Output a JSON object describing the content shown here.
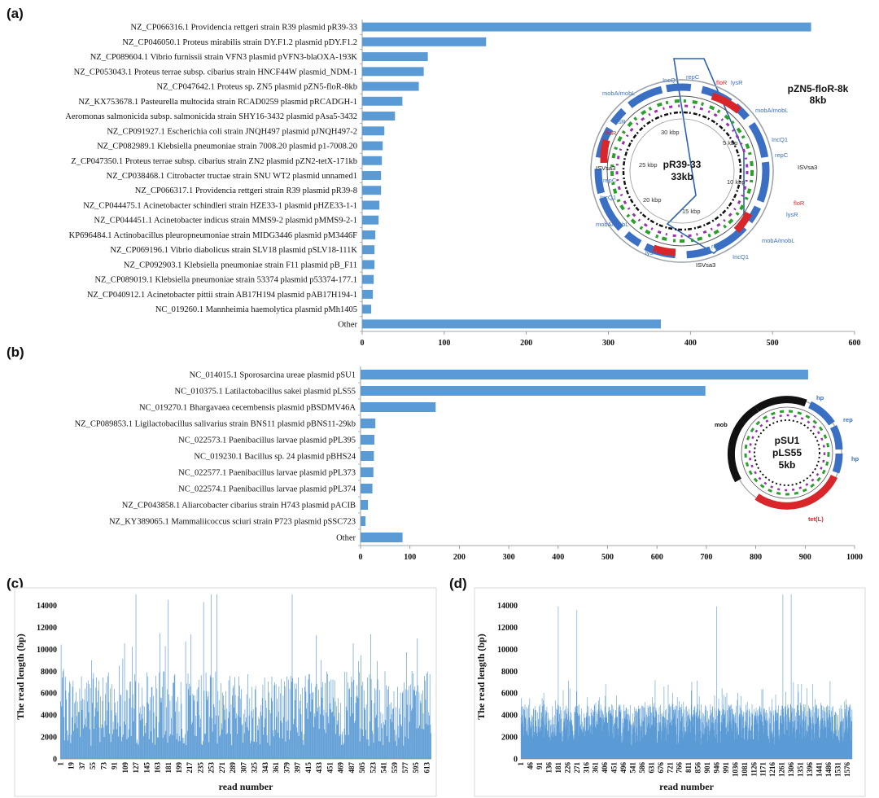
{
  "colors": {
    "bar": "#5b9bd5",
    "grid": "#d9d9d9",
    "axis": "#888888",
    "blue_gene": "#3a6fc4",
    "red_gene": "#d8262b"
  },
  "panel_labels": [
    "(a)",
    "(b)",
    "(c)",
    "(d)"
  ],
  "chart_data": [
    {
      "type": "bar",
      "orientation": "horizontal",
      "panel": "(a)",
      "categories": [
        "NZ_CP066316.1 Providencia rettgeri strain R39 plasmid pR39-33",
        "NZ_CP046050.1 Proteus mirabilis strain DY.F1.2 plasmid pDY.F1.2",
        "NZ_CP089604.1 Vibrio furnissii strain VFN3 plasmid pVFN3-blaOXA-193K",
        "NZ_CP053043.1 Proteus terrae subsp. cibarius strain HNCF44W plasmid_NDM-1",
        "NZ_CP047642.1 Proteus sp. ZN5 plasmid pZN5-floR-8kb",
        "NZ_KX753678.1 Pasteurella multocida strain RCAD0259 plasmid pRCADGH-1",
        "Aeromonas salmonicida subsp. salmonicida strain SHY16-3432 plasmid pAsa5-3432",
        "NZ_CP091927.1 Escherichia coli strain JNQH497 plasmid pJNQH497-2",
        "NZ_CP082989.1 Klebsiella pneumoniae strain 7008.20 plasmid p1-7008.20",
        "Z_CP047350.1 Proteus terrae subsp. cibarius strain ZN2 plasmid pZN2-tetX-171kb",
        "NZ_CP038468.1 Citrobacter tructae strain SNU WT2 plasmid unnamed1",
        "NZ_CP066317.1 Providencia rettgeri strain R39 plasmid pR39-8",
        "NZ_CP044475.1 Acinetobacter schindleri strain HZE33-1 plasmid pHZE33-1-1",
        "NZ_CP044451.1 Acinetobacter indicus strain MMS9-2 plasmid pMMS9-2-1",
        "KP696484.1 Actinobacillus pleuropneumoniae strain MIDG3446 plasmid pM3446F",
        "NZ_CP069196.1 Vibrio diabolicus strain SLV18 plasmid pSLV18-111K",
        "NZ_CP092903.1 Klebsiella pneumoniae strain F11 plasmid pB_F11",
        "NZ_CP089019.1 Klebsiella pneumoniae strain 53374 plasmid p53374-177.1",
        "NZ_CP040912.1 Acinetobacter pittii strain AB17H194 plasmid pAB17H194-1",
        "NC_019260.1 Mannheimia haemolytica plasmid pMh1405",
        "Other"
      ],
      "values": [
        547,
        151,
        80,
        75,
        69,
        49,
        40,
        27,
        25,
        24,
        23,
        23,
        21,
        20,
        16,
        15,
        15,
        14,
        13,
        11,
        364
      ],
      "xlim": [
        0,
        600
      ],
      "xticks": [
        "0",
        "100",
        "200",
        "300",
        "400",
        "500",
        "600"
      ]
    },
    {
      "type": "bar",
      "orientation": "horizontal",
      "panel": "(b)",
      "categories": [
        "NC_014015.1 Sporosarcina ureae plasmid pSU1",
        "NC_010375.1 Latilactobacillus sakei plasmid pLS55",
        "NC_019270.1 Bhargavaea cecembensis plasmid pBSDMV46A",
        "NZ_CP089853.1 Ligilactobacillus salivarius strain BNS11 plasmid pBNS11-29kb",
        "NC_022573.1 Paenibacillus larvae plasmid pPL395",
        "NC_019230.1 Bacillus sp. 24 plasmid pBHS24",
        "NC_022577.1 Paenibacillus larvae plasmid pPL373",
        "NC_022574.1 Paenibacillus larvae plasmid pPL374",
        "NZ_CP043858.1 Aliarcobacter cibarius strain H743 plasmid pACIB",
        "NZ_KY389065.1 Mammaliicoccus sciuri strain P723 plasmid pSSC723",
        "Other"
      ],
      "values": [
        906,
        698,
        152,
        30,
        28,
        27,
        26,
        24,
        15,
        10,
        85
      ],
      "xlim": [
        0,
        1000
      ],
      "xticks": [
        "0",
        "100",
        "200",
        "300",
        "400",
        "500",
        "600",
        "700",
        "800",
        "900",
        "1000"
      ]
    },
    {
      "type": "bar",
      "panel": "(c)",
      "ylabel": "The read length (bp)",
      "xlabel": "read number",
      "ylim": [
        0,
        15000
      ],
      "yticks": [
        "0",
        "2000",
        "4000",
        "6000",
        "8000",
        "10000",
        "12000",
        "14000"
      ],
      "x_tick_labels": [
        "1",
        "19",
        "37",
        "55",
        "73",
        "91",
        "109",
        "127",
        "145",
        "163",
        "181",
        "199",
        "217",
        "235",
        "253",
        "271",
        "289",
        "307",
        "325",
        "343",
        "361",
        "379",
        "397",
        "415",
        "433",
        "451",
        "469",
        "487",
        "505",
        "523",
        "541",
        "559",
        "577",
        "595",
        "613"
      ],
      "n_reads": 620,
      "typical_range": [
        2000,
        8000
      ],
      "peaks": [
        {
          "read": 127,
          "length": 15000
        },
        {
          "read": 181,
          "length": 14500
        },
        {
          "read": 240,
          "length": 14300
        },
        {
          "read": 253,
          "length": 15000
        },
        {
          "read": 262,
          "length": 15000
        },
        {
          "read": 388,
          "length": 15000
        }
      ]
    },
    {
      "type": "bar",
      "panel": "(d)",
      "ylabel": "The read length (bp)",
      "xlabel": "read number",
      "ylim": [
        0,
        15000
      ],
      "yticks": [
        "0",
        "2000",
        "4000",
        "6000",
        "8000",
        "10000",
        "12000",
        "14000"
      ],
      "x_tick_labels": [
        "1",
        "46",
        "91",
        "136",
        "181",
        "226",
        "271",
        "316",
        "361",
        "406",
        "451",
        "496",
        "541",
        "586",
        "631",
        "676",
        "721",
        "766",
        "811",
        "856",
        "901",
        "946",
        "991",
        "1036",
        "1081",
        "1126",
        "1171",
        "1216",
        "1261",
        "1306",
        "1351",
        "1396",
        "1441",
        "1486",
        "1531",
        "1576"
      ],
      "n_reads": 1600,
      "typical_range": [
        2000,
        5000
      ],
      "peaks": [
        {
          "read": 181,
          "length": 13900
        },
        {
          "read": 271,
          "length": 13600
        },
        {
          "read": 946,
          "length": 13900
        },
        {
          "read": 1266,
          "length": 15000
        },
        {
          "read": 1306,
          "length": 15000
        }
      ]
    }
  ],
  "plasmid_maps": {
    "a": {
      "center_name": "pR39-33",
      "center_size": "33kb",
      "highlight_name": "pZN5-floR-8k",
      "highlight_size": "8kb",
      "scale_labels": [
        "5 kbp",
        "10 kbp",
        "15 kbp",
        "20 kbp",
        "25 kbp",
        "30 kbp"
      ],
      "gene_labels": [
        "IncQ1",
        "repC",
        "floR",
        "lysR",
        "mobA/mobL",
        "IncQ1",
        "repC",
        "ISVsa3",
        "floR",
        "lysR",
        "mobA/mobL",
        "IncQ1",
        "repC",
        "ISVsa3",
        "floR",
        "lysR",
        "mobA/mobL",
        "IncQ1",
        "repC",
        "ISVsa3",
        "floR",
        "lysR",
        "mobA/mobL"
      ]
    },
    "b": {
      "center_name": "pSU1",
      "center_name2": "pLS55",
      "center_size": "5kb",
      "gene_labels": [
        "hp",
        "rep",
        "hp",
        "mob",
        "tet(L)"
      ]
    }
  }
}
